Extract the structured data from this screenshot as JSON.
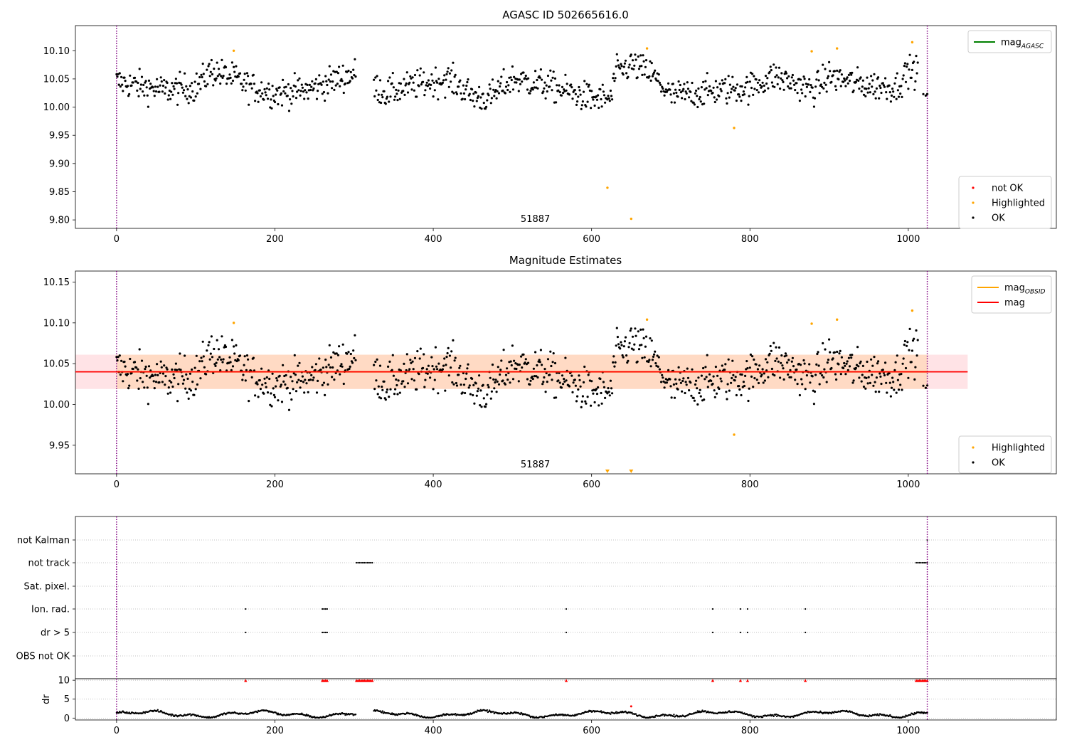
{
  "colors": {
    "ok": "#000000",
    "not_ok": "#ff0000",
    "highlighted": "#ffa500",
    "mag_agasc_line": "#008000",
    "mag_obsid_line": "#ffa500",
    "mag_line": "#ff0000",
    "band_inner": "#ffdac4",
    "band_outer": "#ffe3e6",
    "vline": "#800080",
    "grid": "#b0b0b0"
  },
  "chart_data": [
    {
      "type": "scatter",
      "title": "AGASC ID 502665616.0",
      "xlim": [
        -52,
        1187
      ],
      "ylim": [
        9.785,
        10.1445
      ],
      "xticks": [
        0,
        200,
        400,
        600,
        800,
        1000
      ],
      "xtick_labels": [
        "0",
        "200",
        "400",
        "600",
        "800",
        "1000"
      ],
      "yticks": [
        9.8,
        9.85,
        9.9,
        9.95,
        10.0,
        10.05,
        10.1
      ],
      "ytick_labels": [
        "9.80",
        "9.85",
        "9.90",
        "9.95",
        "10.00",
        "10.05",
        "10.10"
      ],
      "obsid_label": "51887",
      "obsid_label_x": 511,
      "vlines": [
        0,
        1024
      ],
      "highlighted": [
        [
          148,
          10.1
        ],
        [
          620,
          9.857
        ],
        [
          650,
          9.802
        ],
        [
          670,
          10.104
        ],
        [
          780,
          9.963
        ],
        [
          878,
          10.099
        ],
        [
          910,
          10.104
        ],
        [
          1005,
          10.115
        ]
      ],
      "legend_top": [
        {
          "label": "mag",
          "sub": "AGASC",
          "kind": "line",
          "color_key": "mag_agasc_line"
        }
      ],
      "legend_bottom": [
        {
          "label": "not OK",
          "kind": "dot",
          "color_key": "not_ok"
        },
        {
          "label": "Highlighted",
          "kind": "dot",
          "color_key": "highlighted"
        },
        {
          "label": "OK",
          "kind": "dot",
          "color_key": "ok"
        }
      ]
    },
    {
      "type": "scatter",
      "title": "Magnitude Estimates",
      "xlim": [
        -52,
        1187
      ],
      "ylim": [
        9.915,
        10.1635
      ],
      "xticks": [
        0,
        200,
        400,
        600,
        800,
        1000
      ],
      "xtick_labels": [
        "0",
        "200",
        "400",
        "600",
        "800",
        "1000"
      ],
      "yticks": [
        9.95,
        10.0,
        10.05,
        10.1,
        10.15
      ],
      "ytick_labels": [
        "9.95",
        "10.00",
        "10.05",
        "10.10",
        "10.15"
      ],
      "obsid_label": "51887",
      "obsid_label_x": 511,
      "vlines": [
        0,
        1024
      ],
      "mag_line": 10.04,
      "band_inner": {
        "x": [
          0,
          1024
        ],
        "y": [
          10.019,
          10.061
        ]
      },
      "band_outer": {
        "x": [
          -52,
          1075
        ],
        "y": [
          10.019,
          10.061
        ]
      },
      "highlighted": [
        [
          148,
          10.1
        ],
        [
          670,
          10.104
        ],
        [
          780,
          9.963
        ],
        [
          878,
          10.099
        ],
        [
          910,
          10.104
        ],
        [
          1005,
          10.115
        ]
      ],
      "below_range_markers": [
        620,
        650
      ],
      "legend_top": [
        {
          "label": "mag",
          "sub": "OBSID",
          "kind": "line",
          "color_key": "mag_obsid_line"
        },
        {
          "label": "mag",
          "sub": "",
          "kind": "line",
          "color_key": "mag_line"
        }
      ],
      "legend_bottom": [
        {
          "label": "Highlighted",
          "kind": "dot",
          "color_key": "highlighted"
        },
        {
          "label": "OK",
          "kind": "dot",
          "color_key": "ok"
        }
      ]
    },
    {
      "type": "scatter",
      "xlim": [
        -52,
        1187
      ],
      "vlines": [
        0,
        1024
      ],
      "flag_labels": [
        "not Kalman",
        "not track",
        "Sat. pixel.",
        "Ion. rad.",
        "dr > 5",
        "OBS not OK"
      ],
      "flags": {
        "not Kalman": [
          1024
        ],
        "not track": [
          [
            303,
            324
          ],
          [
            1010,
            1024
          ]
        ],
        "Sat. pixel.": [],
        "Ion. rad.": [
          163,
          260,
          262,
          264,
          266,
          568,
          753,
          788,
          797,
          870
        ],
        "dr > 5": [
          163,
          260,
          262,
          264,
          266,
          568,
          753,
          788,
          797,
          870
        ],
        "OBS not OK": []
      },
      "dr_ylabel": "dr",
      "dr_ylim": [
        -0.5,
        10.4
      ],
      "dr_yticks": [
        0,
        5,
        10
      ],
      "dr_ytick_labels": [
        "0",
        "5",
        "10"
      ],
      "dr_high_markers": [
        163,
        260,
        262,
        264,
        266,
        303,
        305,
        307,
        309,
        311,
        313,
        315,
        317,
        319,
        321,
        323,
        568,
        753,
        788,
        797,
        870,
        1010,
        1012,
        1014,
        1016,
        1018,
        1020,
        1022,
        1024
      ],
      "dr_outlier": [
        [
          650,
          3.1
        ]
      ],
      "xticks": [
        0,
        200,
        400,
        600,
        800,
        1000
      ],
      "xtick_labels": [
        "0",
        "200",
        "400",
        "600",
        "800",
        "1000"
      ]
    }
  ]
}
